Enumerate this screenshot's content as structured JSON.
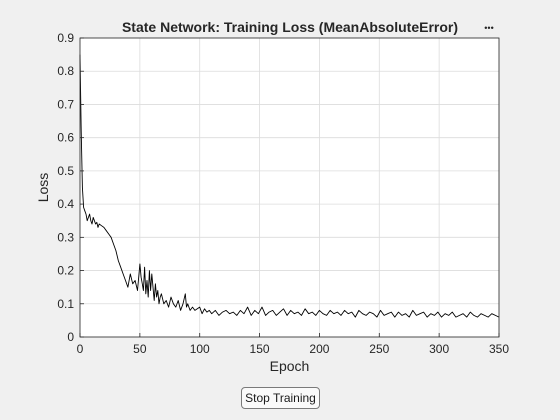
{
  "window": {
    "menu_icon": "ellipsis-icon",
    "menu_glyph": "•••"
  },
  "controls": {
    "stop_label": "Stop Training"
  },
  "colors": {
    "background": "#f0f0f0",
    "plot_bg": "#ffffff",
    "grid": "#dcdcdc",
    "line": "#000000",
    "text": "#262626"
  },
  "chart_data": {
    "type": "line",
    "title": "State Network: Training Loss (MeanAbsoluteError)",
    "xlabel": "Epoch",
    "ylabel": "Loss",
    "xlim": [
      0,
      350
    ],
    "ylim": [
      0,
      0.9
    ],
    "x_ticks": [
      "0",
      "50",
      "100",
      "150",
      "200",
      "250",
      "300",
      "350"
    ],
    "y_ticks": [
      "0",
      "0.1",
      "0.2",
      "0.3",
      "0.4",
      "0.5",
      "0.6",
      "0.7",
      "0.8",
      "0.9"
    ],
    "grid": true,
    "series": [
      {
        "x": [
          0,
          1,
          2,
          3,
          4,
          5,
          6,
          7,
          8,
          9,
          10,
          11,
          12,
          13,
          14,
          15,
          16,
          18,
          20,
          22,
          24,
          26,
          28,
          30,
          32,
          34,
          36,
          38,
          40,
          42,
          44,
          46,
          48,
          50,
          51,
          52,
          53,
          54,
          55,
          56,
          57,
          58,
          59,
          60,
          61,
          62,
          63,
          64,
          65,
          66,
          67,
          68,
          70,
          72,
          74,
          76,
          78,
          80,
          82,
          84,
          86,
          88,
          89,
          90,
          92,
          94,
          96,
          98,
          100,
          102,
          104,
          106,
          108,
          110,
          113,
          116,
          119,
          122,
          125,
          128,
          131,
          134,
          137,
          140,
          143,
          146,
          149,
          152,
          155,
          158,
          161,
          164,
          167,
          170,
          173,
          176,
          179,
          182,
          185,
          188,
          191,
          194,
          197,
          200,
          203,
          206,
          209,
          212,
          215,
          218,
          221,
          224,
          227,
          230,
          233,
          236,
          239,
          242,
          245,
          248,
          251,
          254,
          257,
          260,
          263,
          266,
          269,
          272,
          275,
          278,
          281,
          284,
          287,
          290,
          293,
          296,
          299,
          302,
          305,
          308,
          311,
          314,
          317,
          320,
          323,
          326,
          329,
          332,
          335,
          338,
          341,
          344,
          347,
          350
        ],
        "y": [
          0.85,
          0.62,
          0.45,
          0.39,
          0.38,
          0.37,
          0.35,
          0.36,
          0.37,
          0.35,
          0.34,
          0.36,
          0.35,
          0.34,
          0.345,
          0.33,
          0.34,
          0.335,
          0.33,
          0.32,
          0.31,
          0.3,
          0.28,
          0.26,
          0.23,
          0.21,
          0.19,
          0.17,
          0.15,
          0.19,
          0.16,
          0.17,
          0.14,
          0.22,
          0.18,
          0.16,
          0.14,
          0.21,
          0.13,
          0.17,
          0.12,
          0.2,
          0.14,
          0.19,
          0.15,
          0.11,
          0.16,
          0.12,
          0.14,
          0.1,
          0.12,
          0.13,
          0.1,
          0.11,
          0.09,
          0.12,
          0.1,
          0.09,
          0.11,
          0.08,
          0.1,
          0.13,
          0.09,
          0.1,
          0.08,
          0.09,
          0.08,
          0.085,
          0.09,
          0.07,
          0.085,
          0.075,
          0.08,
          0.07,
          0.08,
          0.065,
          0.075,
          0.08,
          0.07,
          0.075,
          0.065,
          0.08,
          0.07,
          0.09,
          0.065,
          0.08,
          0.07,
          0.09,
          0.065,
          0.075,
          0.08,
          0.065,
          0.075,
          0.085,
          0.065,
          0.08,
          0.07,
          0.075,
          0.065,
          0.085,
          0.07,
          0.075,
          0.065,
          0.08,
          0.07,
          0.065,
          0.08,
          0.07,
          0.075,
          0.065,
          0.08,
          0.07,
          0.075,
          0.06,
          0.08,
          0.07,
          0.065,
          0.075,
          0.07,
          0.06,
          0.08,
          0.065,
          0.07,
          0.075,
          0.06,
          0.075,
          0.065,
          0.07,
          0.06,
          0.08,
          0.065,
          0.07,
          0.075,
          0.06,
          0.07,
          0.065,
          0.075,
          0.06,
          0.07,
          0.065,
          0.075,
          0.06,
          0.065,
          0.07,
          0.06,
          0.075,
          0.065,
          0.06,
          0.07,
          0.065,
          0.06,
          0.07,
          0.065,
          0.06
        ]
      }
    ]
  }
}
